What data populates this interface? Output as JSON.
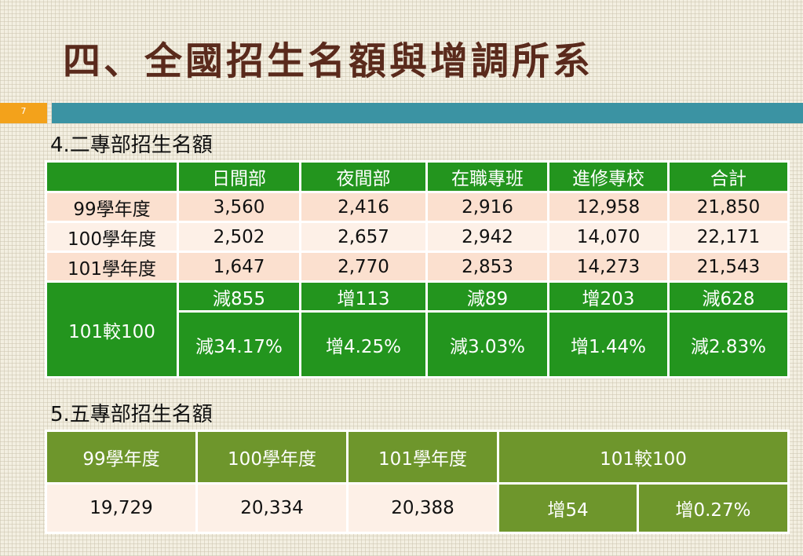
{
  "title": "四、全國招生名額與增調所系",
  "page_number": "7",
  "section2": {
    "heading": "4.二專部招生名額",
    "columns": [
      "日間部",
      "夜間部",
      "在職專班",
      "進修專校",
      "合計"
    ],
    "rows": [
      {
        "label": "99學年度",
        "values": [
          "3,560",
          "2,416",
          "2,916",
          "12,958",
          "21,850"
        ]
      },
      {
        "label": "100學年度",
        "values": [
          "2,502",
          "2,657",
          "2,942",
          "14,070",
          "22,171"
        ]
      },
      {
        "label": "101學年度",
        "values": [
          "1,647",
          "2,770",
          "2,853",
          "14,273",
          "21,543"
        ]
      }
    ],
    "comparison_label": "101較100",
    "comparison_change": [
      "減855",
      "增113",
      "減89",
      "增203",
      "減628"
    ],
    "comparison_percent": [
      "減34.17%",
      "增4.25%",
      "減3.03%",
      "增1.44%",
      "減2.83%"
    ]
  },
  "section5": {
    "heading": "5.五專部招生名額",
    "columns": [
      "99學年度",
      "100學年度",
      "101學年度",
      "101較100"
    ],
    "values": [
      "19,729",
      "20,334",
      "20,388"
    ],
    "change": "增54",
    "percent": "增0.27%"
  }
}
